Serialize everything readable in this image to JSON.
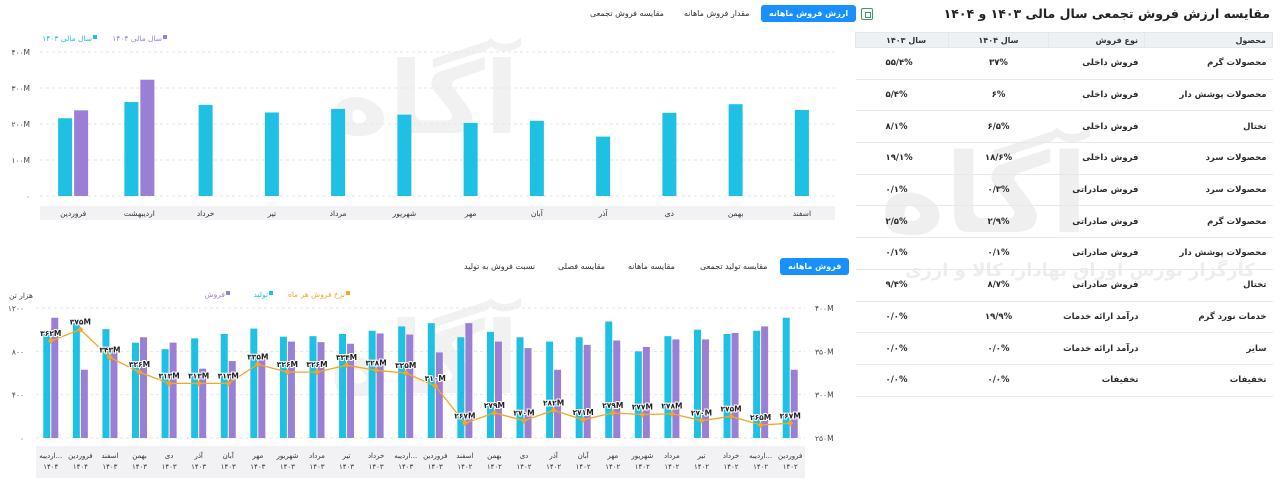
{
  "table_panel": {
    "title": "مقایسه ارزش فروش تجمعی سال مالی ۱۴۰۳ و ۱۴۰۴",
    "columns": [
      "محصول",
      "نوع فروش",
      "سال ۱۴۰۴",
      "سال ۱۴۰۳"
    ],
    "rows": [
      [
        "محصولات گرم",
        "فروش داخلی",
        "۳۷%",
        "۵۵/۴%"
      ],
      [
        "محصولات پوشش دار",
        "فروش داخلی",
        "۶%",
        "۵/۴%"
      ],
      [
        "تختال",
        "فروش داخلی",
        "۶/۵%",
        "۸/۱%"
      ],
      [
        "محصولات سرد",
        "فروش داخلی",
        "۱۸/۶%",
        "۱۹/۱%"
      ],
      [
        "محصولات سرد",
        "فروش صادراتی",
        "۰/۳%",
        "۰/۱%"
      ],
      [
        "محصولات گرم",
        "فروش صادراتی",
        "۲/۹%",
        "۲/۵%"
      ],
      [
        "محصولات پوشش دار",
        "فروش صادراتی",
        "۰/۱%",
        "۰/۱%"
      ],
      [
        "تختال",
        "فروش صادراتی",
        "۸/۷%",
        "۹/۴%"
      ],
      [
        "خدمات نورد گرم",
        "درآمد ارائه خدمات",
        "۱۹/۹%",
        "۰/۰%"
      ],
      [
        "سایر",
        "درآمد ارائه خدمات",
        "۰/۰%",
        "۰/۰%"
      ],
      [
        "تخفیفات",
        "تخفیفات",
        "۰/۰%",
        "۰/۰%"
      ]
    ]
  },
  "top_tabs": [
    "ارزش فروش ماهانه",
    "مقدار فروش ماهانه",
    "مقایسه فروش تجمعی"
  ],
  "bottom_tabs": [
    "فروش ماهانه",
    "مقایسه تولید تجمعی",
    "مقایسه ماهانه",
    "مقایسه فصلی",
    "نسبت فروش به تولید"
  ],
  "watermark": {
    "brand": "آگاه",
    "tagline": "کارگزار بورس اوراق بهادار، کالا و ارزی"
  },
  "colors": {
    "cyan": "#1ec0e4",
    "purple": "#9b7fd4",
    "orange": "#f5a623",
    "active_tab": "#1890ff"
  },
  "chart_data": [
    {
      "type": "bar",
      "legend": [
        "سال مالی ۱۴۰۳",
        "سال مالی ۱۴۰۴"
      ],
      "categories": [
        "فروردین",
        "اردیبهشت",
        "خرداد",
        "تیر",
        "مرداد",
        "شهریور",
        "مهر",
        "آبان",
        "آذر",
        "دی",
        "بهمن",
        "اسفند"
      ],
      "series": [
        {
          "name": "سال مالی ۱۴۰۳",
          "values": [
            216,
            261,
            253,
            232,
            242,
            226,
            203,
            209,
            165,
            231,
            255,
            239
          ]
        },
        {
          "name": "سال مالی ۱۴۰۴",
          "values": [
            238,
            323,
            null,
            null,
            null,
            null,
            null,
            null,
            null,
            null,
            null,
            null
          ]
        }
      ],
      "y_ticks": [
        "۴۰۰M",
        "۳۰۰M",
        "۲۰۰M",
        "۱۰۰M",
        "۰"
      ],
      "ylim": [
        0,
        400
      ],
      "legend_position": "top-left"
    },
    {
      "type": "bar+line",
      "legend": [
        "فروش",
        "تولید",
        "نرخ فروش هر ماه"
      ],
      "left_axis_unit": "هزار تن",
      "left_ticks": [
        "۱۲۰۰",
        "۸۰۰",
        "۴۰۰",
        "۰"
      ],
      "right_ticks": [
        "۴۰۰M",
        "۳۵۰M",
        "۳۰۰M",
        "۲۵۰M"
      ],
      "ylim_left": [
        0,
        1200
      ],
      "ylim_right": [
        250,
        400
      ],
      "categories": [
        [
          "فروردین",
          "۱۴۰۲"
        ],
        [
          "اردیبه...",
          "۱۴۰۲"
        ],
        [
          "خرداد",
          "۱۴۰۲"
        ],
        [
          "تیر",
          "۱۴۰۲"
        ],
        [
          "مرداد",
          "۱۴۰۲"
        ],
        [
          "شهریور",
          "۱۴۰۲"
        ],
        [
          "مهر",
          "۱۴۰۲"
        ],
        [
          "آبان",
          "۱۴۰۲"
        ],
        [
          "آذر",
          "۱۴۰۲"
        ],
        [
          "دی",
          "۱۴۰۲"
        ],
        [
          "بهمن",
          "۱۴۰۲"
        ],
        [
          "اسفند",
          "۱۴۰۲"
        ],
        [
          "فروردین",
          "۱۴۰۳"
        ],
        [
          "اردیبه...",
          "۱۴۰۳"
        ],
        [
          "خرداد",
          "۱۴۰۳"
        ],
        [
          "تیر",
          "۱۴۰۳"
        ],
        [
          "مرداد",
          "۱۴۰۳"
        ],
        [
          "شهریور",
          "۱۴۰۳"
        ],
        [
          "مهر",
          "۱۴۰۳"
        ],
        [
          "آبان",
          "۱۴۰۳"
        ],
        [
          "آذر",
          "۱۴۰۳"
        ],
        [
          "دی",
          "۱۴۰۳"
        ],
        [
          "بهمن",
          "۱۴۰۳"
        ],
        [
          "اسفند",
          "۱۴۰۳"
        ],
        [
          "فروردین",
          "۱۴۰۴"
        ],
        [
          "اردیبه...",
          "۱۴۰۴"
        ]
      ],
      "series": [
        {
          "name": "فروش",
          "values": [
            630,
            1030,
            970,
            910,
            910,
            840,
            900,
            860,
            630,
            830,
            890,
            1060,
            790,
            955,
            965,
            870,
            885,
            890,
            730,
            710,
            640,
            880,
            930,
            840,
            630,
            1110
          ]
        },
        {
          "name": "تولید",
          "values": [
            1110,
            990,
            960,
            1000,
            940,
            800,
            1075,
            930,
            890,
            930,
            980,
            930,
            1060,
            1030,
            990,
            960,
            940,
            935,
            1010,
            960,
            920,
            820,
            880,
            1005,
            1060,
            960
          ]
        },
        {
          "name": "نرخ فروش هر ماه",
          "values": [
            267,
            265,
            275,
            270,
            278,
            277,
            279,
            271,
            282,
            270,
            279,
            267,
            310,
            325,
            328,
            334,
            326,
            326,
            335,
            313,
            313,
            313,
            326,
            343,
            375,
            362
          ]
        }
      ],
      "line_labels": [
        "۲۶۷M",
        "۲۶۵M",
        "۲۷۵M",
        "۲۷۰M",
        "۲۷۸M",
        "۲۷۷M",
        "۲۷۹M",
        "۲۷۱M",
        "۲۸۲M",
        "۲۷۰M",
        "۲۷۹M",
        "۲۶۷M",
        "۳۱۰M",
        "۳۲۵M",
        "۳۲۸M",
        "۳۳۴M",
        "۳۲۶M",
        "۳۲۶M",
        "۳۳۵M",
        "۳۱۳M",
        "۳۱۳M",
        "۳۱۳M",
        "۳۲۶M",
        "۳۴۳M",
        "۳۷۵M",
        "۳۶۲M"
      ],
      "legend_position": "top-left"
    }
  ]
}
